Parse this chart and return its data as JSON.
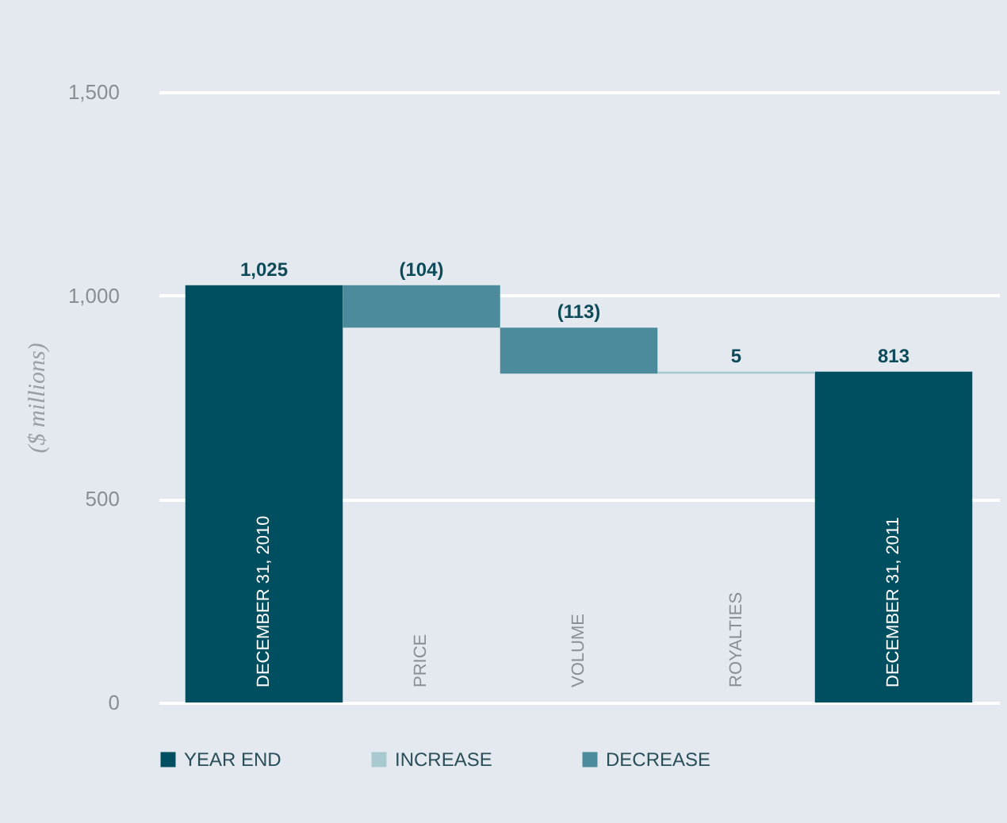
{
  "chart_data": {
    "type": "bar",
    "ylabel": "($ millions)",
    "categories": [
      "DECEMBER 31, 2010",
      "PRICE",
      "VOLUME",
      "ROYALTIES",
      "DECEMBER 31, 2011"
    ],
    "series": [
      {
        "name": "YEAR END",
        "color": "#004f61",
        "values": [
          1025,
          null,
          null,
          null,
          813
        ],
        "base": [
          0,
          null,
          null,
          null,
          0
        ],
        "value_labels": [
          "1,025",
          null,
          null,
          null,
          "813"
        ]
      },
      {
        "name": "INCREASE",
        "color": "#a9c9d1",
        "values": [
          null,
          null,
          null,
          5,
          null
        ],
        "base": [
          null,
          null,
          null,
          808,
          null
        ],
        "value_labels": [
          null,
          null,
          null,
          "5",
          null
        ]
      },
      {
        "name": "DECREASE",
        "color": "#4b8b9b",
        "values": [
          null,
          -104,
          -113,
          null,
          null
        ],
        "base": [
          null,
          1025,
          921,
          null,
          null
        ],
        "value_labels": [
          null,
          "(104)",
          "(113)",
          null,
          null
        ]
      }
    ],
    "ylim": [
      0,
      1500
    ],
    "yticks": [
      0,
      500,
      {
        "value": 1000,
        "label": "1,000"
      },
      {
        "value": 1500,
        "label": "1,500"
      }
    ],
    "grid": "y",
    "legend": "bottom"
  }
}
